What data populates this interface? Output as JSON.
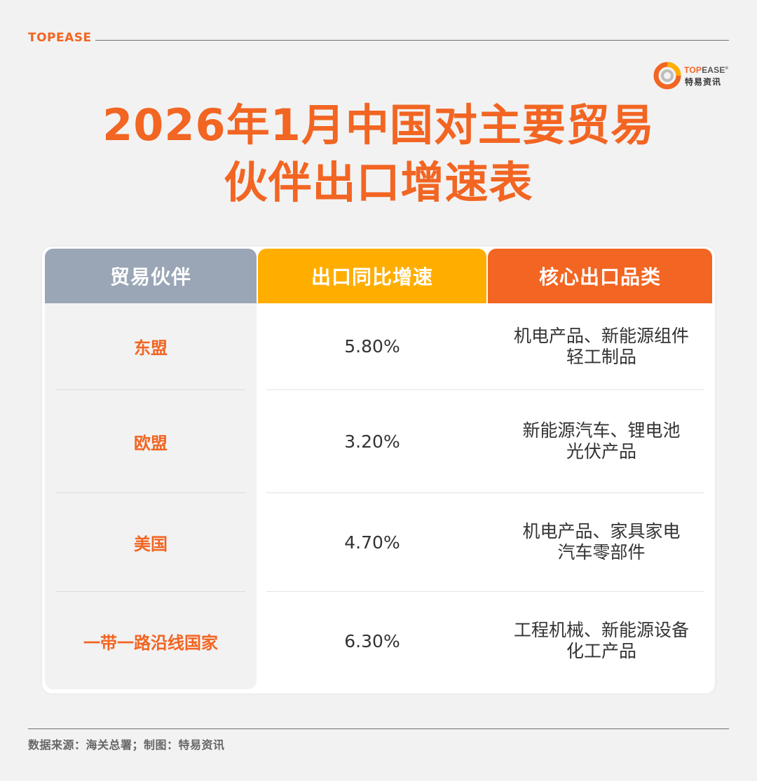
{
  "header": {
    "brand": "TOPEASE",
    "logo_word_a": "TOP",
    "logo_word_b": "EASE",
    "logo_reg": "®",
    "logo_sub": "特易资讯"
  },
  "title": {
    "line1": "2026年1月中国对主要贸易",
    "line2": "伙伴出口增速表"
  },
  "table": {
    "columns": [
      "贸易伙伴",
      "出口同比增速",
      "核心出口品类"
    ],
    "rows": [
      {
        "partner": "东盟",
        "growth": "5.80%",
        "products": [
          "机电产品、新能源组件",
          "轻工制品"
        ]
      },
      {
        "partner": "欧盟",
        "growth": "3.20%",
        "products": [
          "新能源汽车、锂电池",
          "光伏产品"
        ]
      },
      {
        "partner": "美国",
        "growth": "4.70%",
        "products": [
          "机电产品、家具家电",
          "汽车零部件"
        ]
      },
      {
        "partner": "一带一路沿线国家",
        "growth": "6.30%",
        "products": [
          "工程机械、新能源设备",
          "化工产品"
        ]
      }
    ]
  },
  "footer": {
    "source": "数据来源：海关总署；制图：特易资讯"
  },
  "colors": {
    "accent": "#f26522",
    "partner_header": "#9aa6b6",
    "growth_header": "#ffae00",
    "products_header": "#f26522",
    "background": "#f2f2f2"
  }
}
